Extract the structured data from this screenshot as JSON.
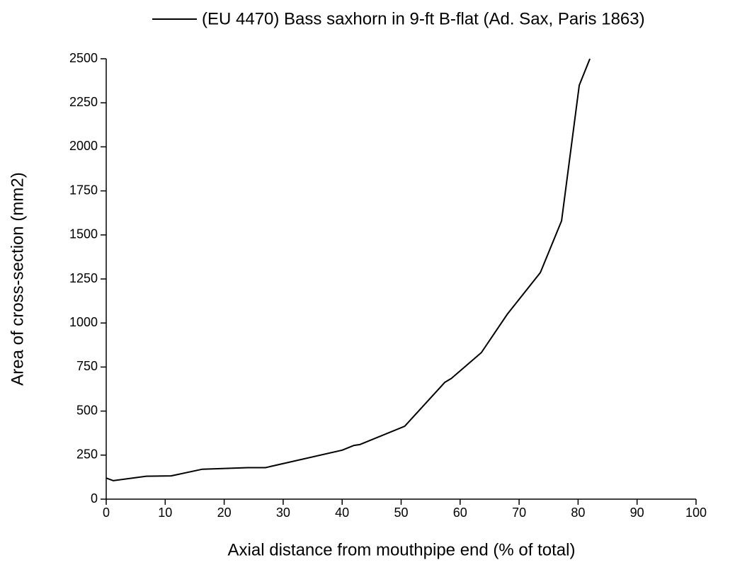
{
  "chart_data": {
    "type": "line",
    "xlabel": "Axial distance from mouthpipe end (% of total)",
    "ylabel": "Area of cross-section (mm2)",
    "series": [
      {
        "name": "(EU 4470) Bass saxhorn in 9-ft B-flat (Ad. Sax, Paris 1863)",
        "color": "#000000",
        "x": [
          0,
          1.2,
          6.8,
          11,
          16.3,
          24,
          27,
          40,
          42,
          43,
          50.6,
          57.4,
          58.5,
          63.6,
          68,
          73.6,
          77.2,
          80.2,
          82
        ],
        "values": [
          120,
          105,
          130,
          132,
          170,
          179,
          179,
          278,
          305,
          310,
          414,
          663,
          685,
          832,
          1050,
          1286,
          1580,
          2350,
          2500
        ]
      }
    ],
    "xlim": [
      0,
      100
    ],
    "xticks": [
      0,
      10,
      20,
      30,
      40,
      50,
      60,
      70,
      80,
      90,
      100
    ],
    "ylim": [
      0,
      2500
    ],
    "yticks": [
      0,
      250,
      500,
      750,
      1000,
      1250,
      1500,
      1750,
      2000,
      2250,
      2500
    ],
    "legend": "top"
  }
}
